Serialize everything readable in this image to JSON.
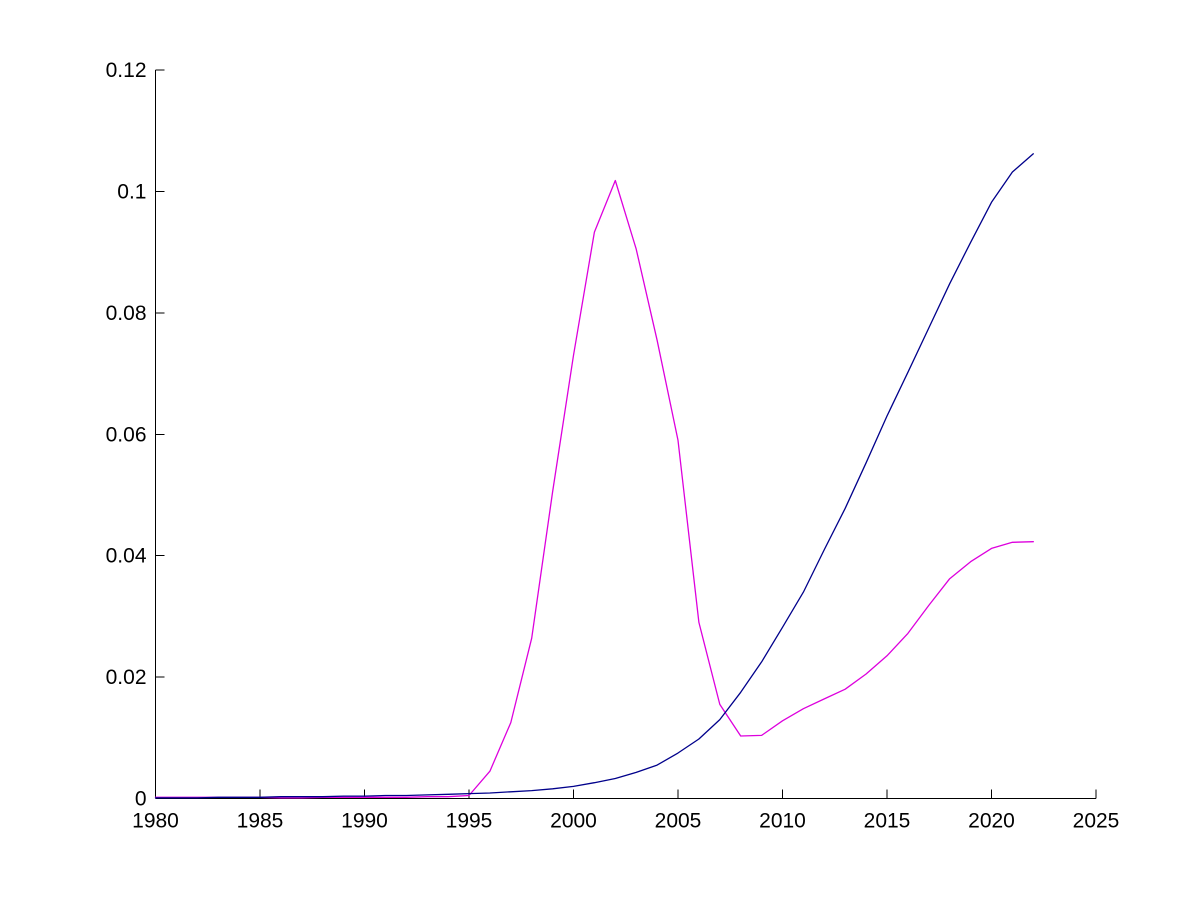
{
  "chart_data": {
    "type": "line",
    "title": "",
    "xlabel": "",
    "ylabel": "",
    "grid": false,
    "box": false,
    "legend": "none",
    "background": "#FFFFFF",
    "axis_color": "#000000",
    "xlim": [
      1980,
      2025
    ],
    "ylim": [
      0,
      0.12
    ],
    "x_ticks": [
      1980,
      1985,
      1990,
      1995,
      2000,
      2005,
      2010,
      2015,
      2020,
      2025
    ],
    "x_tick_labels": [
      "1980",
      "1985",
      "1990",
      "1995",
      "2000",
      "2005",
      "2010",
      "2015",
      "2020",
      "2025"
    ],
    "y_ticks": [
      0,
      0.02,
      0.04,
      0.06,
      0.08,
      0.1,
      0.12
    ],
    "y_tick_labels": [
      "0",
      "0.02",
      "0.04",
      "0.06",
      "0.08",
      "0.1",
      "0.12"
    ],
    "x": [
      1980,
      1981,
      1982,
      1983,
      1984,
      1985,
      1986,
      1987,
      1988,
      1989,
      1990,
      1991,
      1992,
      1993,
      1994,
      1995,
      1996,
      1997,
      1998,
      1999,
      2000,
      2001,
      2002,
      2003,
      2004,
      2005,
      2006,
      2007,
      2008,
      2009,
      2010,
      2011,
      2012,
      2013,
      2014,
      2015,
      2016,
      2017,
      2018,
      2019,
      2020,
      2021,
      2022
    ],
    "series": [
      {
        "name": "magenta-line",
        "color": "#DD00DD",
        "values": [
          0.0002,
          0.0002,
          0.0002,
          0.0002,
          0.0002,
          0.0002,
          0.0001,
          0.0001,
          0.0002,
          0.0002,
          0.0002,
          0.0002,
          0.0002,
          0.0003,
          0.0003,
          0.0005,
          0.0045,
          0.0125,
          0.0264,
          0.0505,
          0.073,
          0.0933,
          0.1018,
          0.0905,
          0.0755,
          0.059,
          0.029,
          0.0155,
          0.0103,
          0.0104,
          0.0128,
          0.0148,
          0.0164,
          0.018,
          0.0205,
          0.0235,
          0.0272,
          0.0318,
          0.0362,
          0.039,
          0.0412,
          0.0422,
          0.0423
        ]
      },
      {
        "name": "dark-blue-line",
        "color": "#00008B",
        "values": [
          0.0001,
          0.0001,
          0.0001,
          0.0002,
          0.0002,
          0.0002,
          0.0003,
          0.0003,
          0.0003,
          0.0004,
          0.0004,
          0.0005,
          0.0005,
          0.0006,
          0.0007,
          0.0008,
          0.0009,
          0.0011,
          0.0013,
          0.0016,
          0.002,
          0.0026,
          0.0033,
          0.0043,
          0.0055,
          0.0075,
          0.0098,
          0.013,
          0.0175,
          0.0225,
          0.0282,
          0.034,
          0.041,
          0.0478,
          0.0553,
          0.063,
          0.0702,
          0.0775,
          0.0848,
          0.0916,
          0.0982,
          0.1032,
          0.1062
        ]
      }
    ]
  }
}
